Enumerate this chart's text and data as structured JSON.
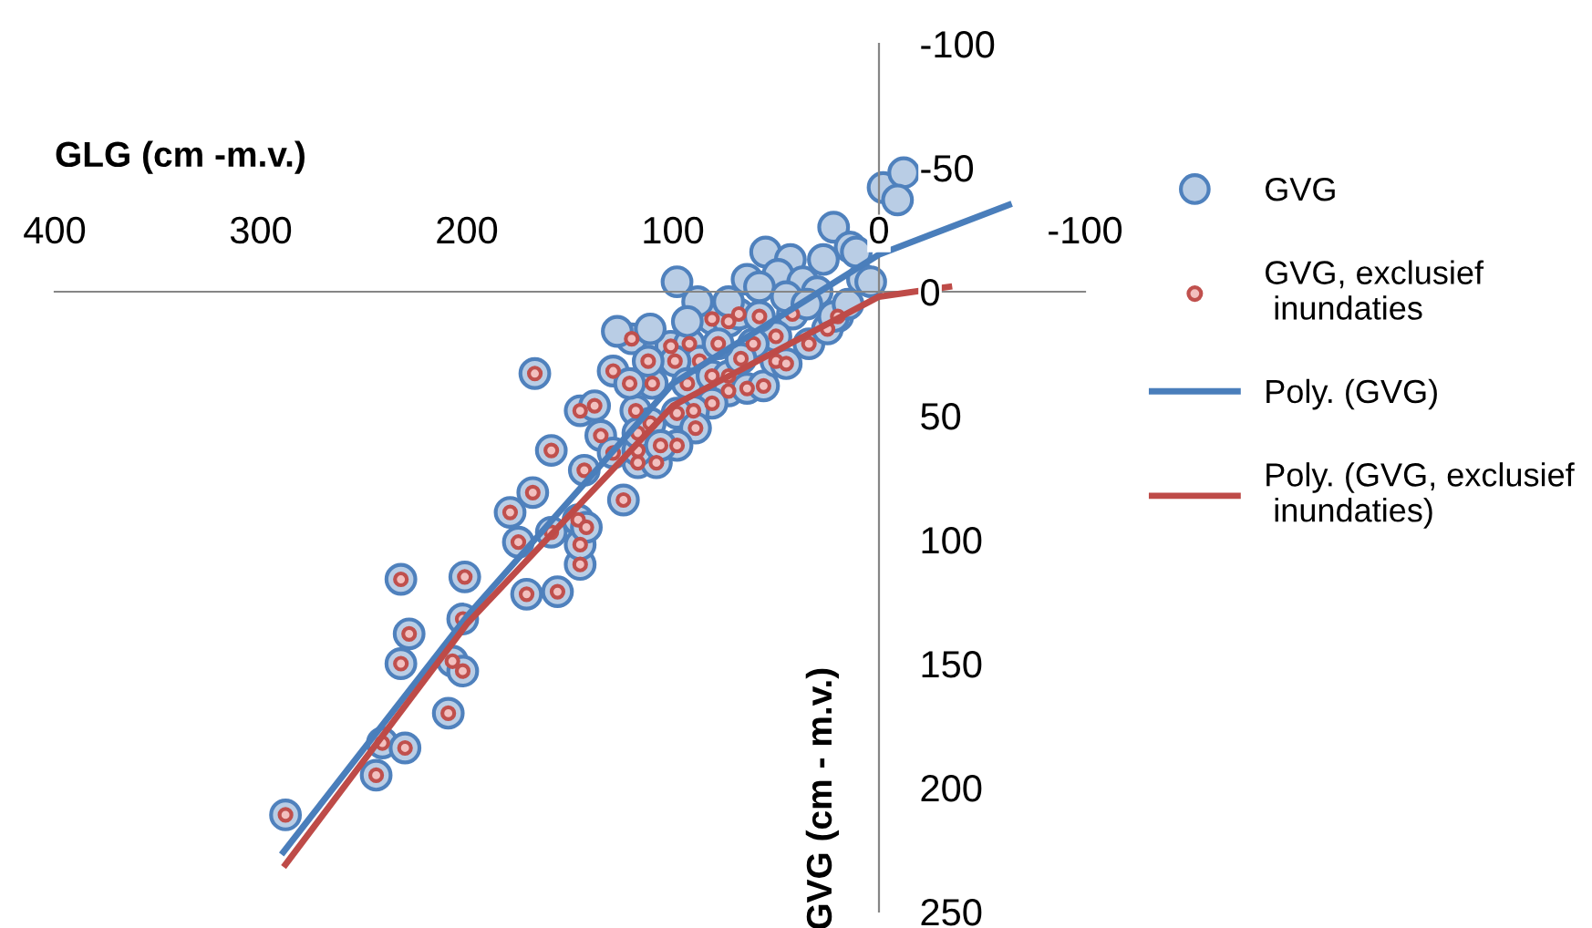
{
  "chart_data": {
    "type": "scatter",
    "xlabel": "GLG (cm -m.v.)",
    "ylabel": "GVG (cm - m.v.)",
    "xlim": [
      400,
      -100
    ],
    "ylim": [
      250,
      -100
    ],
    "xticks": [
      400,
      300,
      200,
      100,
      0,
      -100
    ],
    "yticks": [
      -100,
      -50,
      0,
      50,
      100,
      150,
      200,
      250
    ],
    "grid": false,
    "legend": "right",
    "series": [
      {
        "name": "GVG",
        "marker": "circle",
        "color": "#4f81bd",
        "x": [
          288,
          244,
          241,
          230,
          209,
          232,
          228,
          232,
          207,
          202,
          202,
          201,
          171,
          156,
          145,
          145,
          146,
          142,
          159,
          175,
          179,
          168,
          159,
          124,
          143,
          167,
          129,
          145,
          138,
          135,
          118,
          117,
          108,
          120,
          110,
          111,
          129,
          101,
          92,
          81,
          73,
          87,
          99,
          93,
          81,
          73,
          73,
          81,
          64,
          56,
          50,
          42,
          34,
          50,
          61,
          90,
          98,
          89,
          98,
          117,
          112,
          121,
          67,
          78,
          68,
          58,
          45,
          117,
          106,
          20,
          25,
          127,
          98,
          111,
          22,
          14,
          27,
          55,
          43,
          8,
          64,
          73,
          88,
          93,
          22,
          49,
          37,
          58,
          -2,
          -12,
          -9,
          11,
          4,
          30,
          45,
          35,
          15
        ],
        "values": [
          211,
          195,
          182,
          184,
          170,
          150,
          138,
          116,
          149,
          153,
          132,
          115,
          122,
          121,
          110,
          102,
          92,
          95,
          97,
          101,
          89,
          81,
          64,
          84,
          72,
          33,
          32,
          48,
          46,
          58,
          48,
          69,
          69,
          19,
          37,
          53,
          65,
          22,
          21,
          11,
          12,
          28,
          28,
          37,
          34,
          34,
          40,
          45,
          39,
          38,
          28,
          9,
          21,
          18,
          21,
          48,
          49,
          55,
          62,
          64,
          28,
          37,
          27,
          21,
          9,
          10,
          29,
          57,
          62,
          10,
          15,
          16,
          -4,
          15,
          -26,
          -18,
          -13,
          -16,
          -13,
          -5,
          -5,
          4,
          4,
          12,
          10,
          -7,
          -4,
          -2,
          -42,
          -48,
          -37,
          -16,
          -4,
          0,
          2,
          5,
          5
        ]
      },
      {
        "name": "GVG, exclusief inundaties",
        "marker": "circle",
        "color": "#c0504d",
        "x": [
          288,
          244,
          241,
          230,
          209,
          232,
          228,
          232,
          207,
          202,
          202,
          201,
          171,
          156,
          145,
          145,
          146,
          142,
          159,
          175,
          179,
          168,
          159,
          124,
          143,
          167,
          129,
          145,
          138,
          135,
          118,
          117,
          108,
          120,
          110,
          111,
          129,
          101,
          92,
          81,
          73,
          87,
          99,
          93,
          81,
          73,
          73,
          81,
          64,
          56,
          50,
          42,
          34,
          50,
          61,
          90,
          98,
          89,
          98,
          117,
          112,
          121,
          67,
          78,
          68,
          58,
          45,
          117,
          106,
          20,
          25
        ],
        "values": [
          211,
          195,
          182,
          184,
          170,
          150,
          138,
          116,
          149,
          153,
          132,
          115,
          122,
          121,
          110,
          102,
          92,
          95,
          97,
          101,
          89,
          81,
          64,
          84,
          72,
          33,
          32,
          48,
          46,
          58,
          48,
          69,
          69,
          19,
          37,
          53,
          65,
          22,
          21,
          11,
          12,
          28,
          28,
          37,
          34,
          34,
          40,
          45,
          39,
          38,
          28,
          9,
          21,
          18,
          21,
          48,
          49,
          55,
          62,
          64,
          28,
          37,
          27,
          21,
          9,
          10,
          29,
          57,
          62,
          10,
          15
        ]
      },
      {
        "name": "Poly. (GVG)",
        "type": "line",
        "marker": "none",
        "line_style": "solid",
        "color": "#4a7ebb",
        "x": [
          289,
          200,
          100,
          0,
          -63
        ],
        "values": [
          226,
          131,
          37,
          -15,
          -35
        ]
      },
      {
        "name": "Poly. (GVG, exclusief inundaties)",
        "type": "line",
        "marker": "none",
        "line_style": "solid",
        "color": "#be4b48",
        "x": [
          288,
          200,
          100,
          0,
          -34
        ],
        "values": [
          231,
          134,
          46,
          2,
          -2
        ]
      }
    ]
  }
}
